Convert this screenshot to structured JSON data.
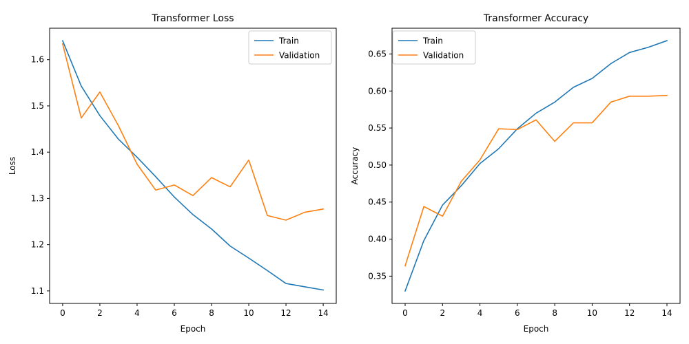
{
  "chart_data": [
    {
      "type": "line",
      "title": "Transformer Loss",
      "xlabel": "Epoch",
      "ylabel": "Loss",
      "xlim": [
        -0.7,
        14.7
      ],
      "ylim": [
        1.073,
        1.668
      ],
      "xticks": [
        0,
        2,
        4,
        6,
        8,
        10,
        12,
        14
      ],
      "yticks": [
        1.1,
        1.2,
        1.3,
        1.4,
        1.5,
        1.6
      ],
      "ytick_labels": [
        "1.1",
        "1.2",
        "1.3",
        "1.4",
        "1.5",
        "1.6"
      ],
      "grid": false,
      "legend_position": "upper right",
      "x": [
        0,
        1,
        2,
        3,
        4,
        5,
        6,
        7,
        8,
        9,
        10,
        11,
        12,
        13,
        14
      ],
      "series": [
        {
          "name": "Train",
          "color": "#1f77b4",
          "values": [
            1.641,
            1.543,
            1.479,
            1.428,
            1.389,
            1.347,
            1.303,
            1.265,
            1.234,
            1.197,
            1.171,
            1.144,
            1.116,
            1.109,
            1.102
          ]
        },
        {
          "name": "Validation",
          "color": "#ff7f0e",
          "values": [
            1.634,
            1.474,
            1.53,
            1.457,
            1.374,
            1.318,
            1.329,
            1.306,
            1.345,
            1.325,
            1.383,
            1.263,
            1.253,
            1.27,
            1.277
          ]
        }
      ]
    },
    {
      "type": "line",
      "title": "Transformer Accuracy",
      "xlabel": "Epoch",
      "ylabel": "Accuracy",
      "xlim": [
        -0.7,
        14.7
      ],
      "ylim": [
        0.3132,
        0.6848
      ],
      "xticks": [
        0,
        2,
        4,
        6,
        8,
        10,
        12,
        14
      ],
      "yticks": [
        0.35,
        0.4,
        0.45,
        0.5,
        0.55,
        0.6,
        0.65
      ],
      "ytick_labels": [
        "0.35",
        "0.40",
        "0.45",
        "0.50",
        "0.55",
        "0.60",
        "0.65"
      ],
      "grid": false,
      "legend_position": "upper left",
      "x": [
        0,
        1,
        2,
        3,
        4,
        5,
        6,
        7,
        8,
        9,
        10,
        11,
        12,
        13,
        14
      ],
      "series": [
        {
          "name": "Train",
          "color": "#1f77b4",
          "values": [
            0.33,
            0.398,
            0.446,
            0.472,
            0.502,
            0.522,
            0.549,
            0.57,
            0.585,
            0.605,
            0.617,
            0.637,
            0.652,
            0.659,
            0.668
          ]
        },
        {
          "name": "Validation",
          "color": "#ff7f0e",
          "values": [
            0.364,
            0.444,
            0.431,
            0.478,
            0.507,
            0.549,
            0.548,
            0.561,
            0.532,
            0.557,
            0.557,
            0.585,
            0.593,
            0.593,
            0.594
          ]
        }
      ]
    }
  ]
}
